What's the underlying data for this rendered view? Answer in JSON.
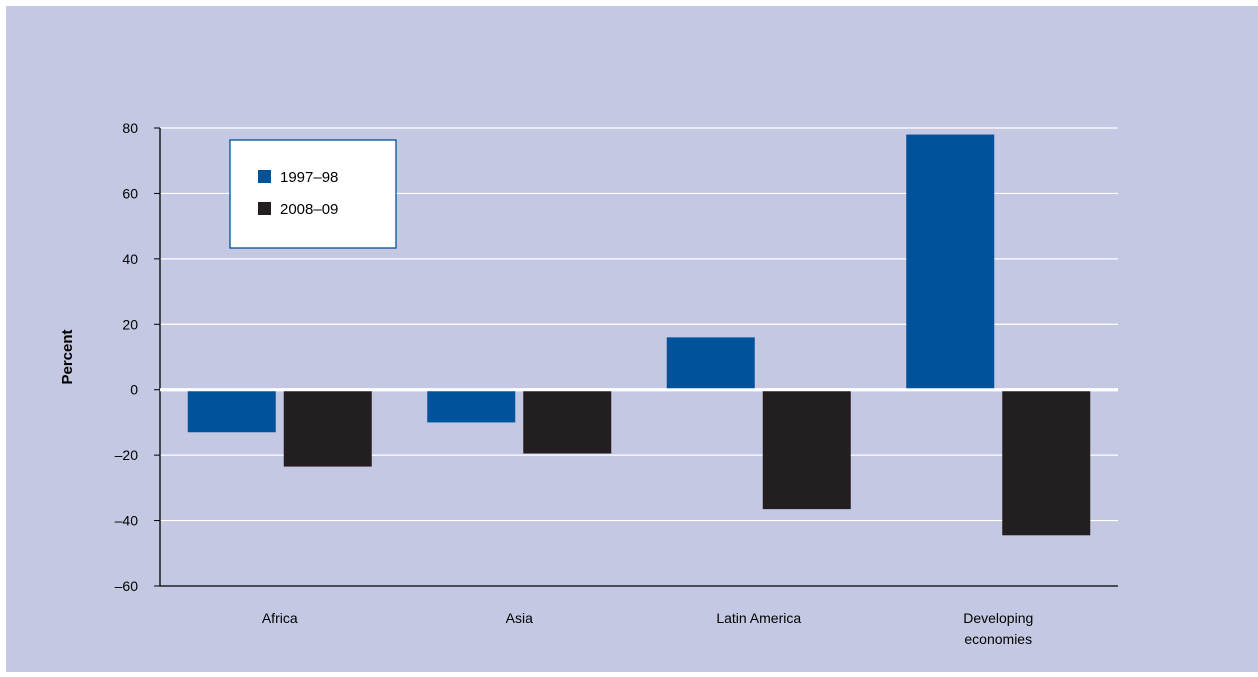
{
  "chart_data": {
    "type": "bar",
    "title": "",
    "xlabel": "",
    "ylabel": "Percent",
    "ylim": [
      -60,
      80
    ],
    "yticks": [
      80,
      60,
      40,
      20,
      0,
      -20,
      -40,
      -60
    ],
    "ytick_labels": [
      "80",
      "60",
      "40",
      "20",
      "0",
      "–20",
      "–40",
      "–60"
    ],
    "grid": true,
    "legend_position": "top-left",
    "categories": [
      {
        "name": "Africa",
        "lines": [
          "Africa"
        ]
      },
      {
        "name": "Asia",
        "lines": [
          "Asia"
        ]
      },
      {
        "name": "Latin America",
        "lines": [
          "Latin America"
        ]
      },
      {
        "name": "Developing economies",
        "lines": [
          "Developing",
          "economies"
        ]
      }
    ],
    "series": [
      {
        "name": "1997–98",
        "color": "#00529b",
        "values": [
          -13,
          -10,
          16,
          78
        ]
      },
      {
        "name": "2008–09",
        "color": "#231f20",
        "values": [
          -23.5,
          -19.5,
          -36.5,
          -44.5
        ]
      }
    ],
    "colors": {
      "background": "#c5c8e3",
      "grid": "#ffffff",
      "axis": "#000000",
      "legend_border": "#00529b"
    }
  }
}
